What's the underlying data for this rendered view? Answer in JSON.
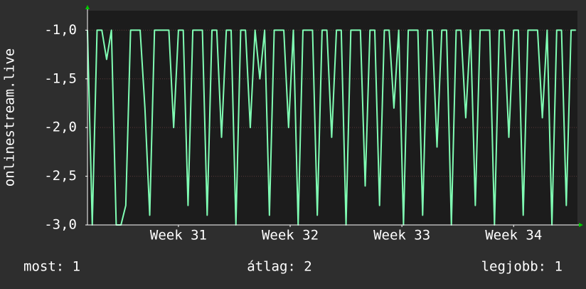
{
  "chart_data": {
    "type": "line",
    "y_label": "onlinestream.live",
    "x": [
      0,
      0.3,
      0.6,
      0.9,
      1.2,
      1.5,
      1.8,
      2.1,
      2.4,
      2.7,
      3,
      3.3,
      3.6,
      3.9,
      4.2,
      4.5,
      4.8,
      5.1,
      5.4,
      5.7,
      6,
      6.3,
      6.6,
      6.9,
      7.2,
      7.5,
      7.8,
      8.1,
      8.4,
      8.7,
      9,
      9.3,
      9.6,
      9.9,
      10.2,
      10.5,
      10.8,
      11.1,
      11.4,
      11.7,
      12,
      12.3,
      12.6,
      12.9,
      13.2,
      13.5,
      13.8,
      14.1,
      14.4,
      14.7,
      15,
      15.3,
      15.6,
      15.9,
      16.2,
      16.5,
      16.8,
      17.1,
      17.4,
      17.7,
      18,
      18.3,
      18.6,
      18.9,
      19.2,
      19.5,
      19.8,
      20.1,
      20.4,
      20.7,
      21,
      21.3,
      21.6,
      21.9,
      22.2,
      22.5,
      22.8,
      23.1,
      23.4,
      23.7,
      24,
      24.3,
      24.6,
      24.9,
      25.2,
      25.5,
      25.8,
      26.1,
      26.4,
      26.7,
      27,
      27.3,
      27.6,
      27.9,
      28.2,
      28.5,
      28.8,
      29.1,
      29.4,
      29.7,
      30,
      30.3,
      30.6
    ],
    "series": [
      {
        "color": "#80ffb4",
        "values": [
          -1,
          -3,
          -1,
          -1,
          -1.3,
          -1,
          -3,
          -3,
          -2.8,
          -1,
          -1,
          -1,
          -1.8,
          -2.9,
          -1,
          -1,
          -1,
          -1,
          -2,
          -1,
          -1,
          -2.8,
          -1,
          -1,
          -1,
          -2.9,
          -1,
          -1,
          -2.1,
          -1,
          -1,
          -3,
          -1,
          -1,
          -2,
          -1,
          -1.5,
          -1,
          -2.9,
          -1,
          -1,
          -1,
          -2,
          -1,
          -3,
          -1,
          -1,
          -1,
          -2.9,
          -1,
          -1,
          -2.1,
          -1,
          -1,
          -3,
          -1,
          -1,
          -1,
          -2.6,
          -1,
          -1,
          -2.8,
          -1,
          -1,
          -1.8,
          -1,
          -3,
          -1,
          -1,
          -1,
          -2.9,
          -1,
          -1,
          -2.2,
          -1,
          -1,
          -3,
          -1,
          -1,
          -1.9,
          -1,
          -2.8,
          -1,
          -1,
          -1,
          -3,
          -1,
          -1,
          -2.1,
          -1,
          -1,
          -2.9,
          -1,
          -1,
          -1,
          -1.9,
          -1,
          -3,
          -1,
          -1,
          -2.8,
          -1,
          -1
        ]
      }
    ],
    "xlim": [
      0,
      30.7
    ],
    "xticks": [
      {
        "value": 5.7,
        "label": "Week 31"
      },
      {
        "value": 12.7,
        "label": "Week 32"
      },
      {
        "value": 19.7,
        "label": "Week 33"
      },
      {
        "value": 26.7,
        "label": "Week 34"
      }
    ],
    "ylim": [
      -3,
      -0.8
    ],
    "yticks": [
      {
        "value": -3,
        "label": "-3,0"
      },
      {
        "value": -2.5,
        "label": "-2,5"
      },
      {
        "value": -2,
        "label": "-2,0"
      },
      {
        "value": -1.5,
        "label": "-1,5"
      },
      {
        "value": -1,
        "label": "-1,0"
      }
    ],
    "grid": true,
    "footer": {
      "current": "most: 1",
      "average": "átlag: 2",
      "best": "legjobb: 1"
    }
  }
}
